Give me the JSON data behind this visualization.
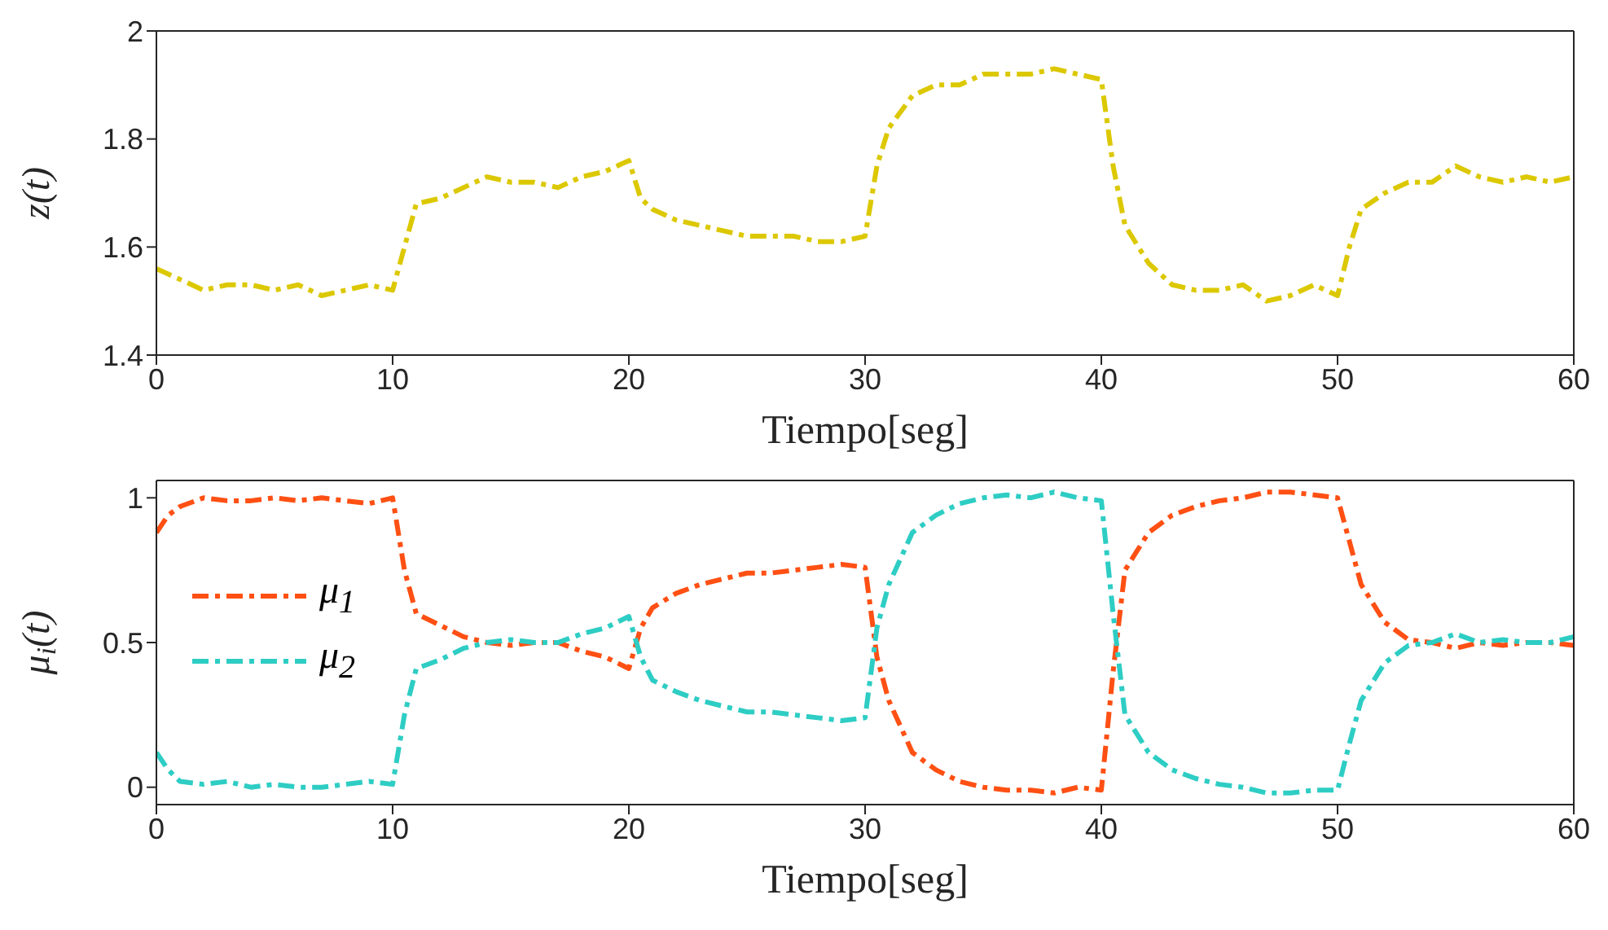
{
  "chart_data": [
    {
      "type": "line",
      "xlabel": "Tiempo[seg]",
      "ylabel": "z(t)",
      "line_style": "dashed",
      "grid": false,
      "legend": false,
      "xlim": [
        0,
        60
      ],
      "xticks": [
        0,
        10,
        20,
        30,
        40,
        50,
        60
      ],
      "ylim": [
        1.4,
        2
      ],
      "yticks": [
        1.4,
        1.6,
        1.8,
        2
      ],
      "x": [
        0,
        0.5,
        1,
        2,
        3,
        4,
        5,
        6,
        7,
        8,
        9,
        10,
        10.5,
        11,
        12,
        13,
        14,
        15,
        16,
        17,
        18,
        19,
        20,
        20.5,
        21,
        22,
        23,
        24,
        25,
        26,
        27,
        28,
        29,
        30,
        30.5,
        31,
        32,
        33,
        34,
        35,
        36,
        37,
        38,
        39,
        40,
        40.5,
        41,
        42,
        43,
        44,
        45,
        46,
        47,
        48,
        49,
        50,
        50.5,
        51,
        52,
        53,
        54,
        55,
        56,
        57,
        58,
        59,
        60
      ],
      "series": [
        {
          "color": "#dcc800",
          "values": [
            1.56,
            1.55,
            1.54,
            1.52,
            1.53,
            1.53,
            1.52,
            1.53,
            1.51,
            1.52,
            1.53,
            1.52,
            1.6,
            1.68,
            1.69,
            1.71,
            1.73,
            1.72,
            1.72,
            1.71,
            1.73,
            1.74,
            1.76,
            1.69,
            1.67,
            1.65,
            1.64,
            1.63,
            1.62,
            1.62,
            1.62,
            1.61,
            1.61,
            1.62,
            1.75,
            1.82,
            1.88,
            1.9,
            1.9,
            1.92,
            1.92,
            1.92,
            1.93,
            1.92,
            1.91,
            1.75,
            1.64,
            1.57,
            1.53,
            1.52,
            1.52,
            1.53,
            1.5,
            1.51,
            1.53,
            1.51,
            1.6,
            1.67,
            1.7,
            1.72,
            1.72,
            1.75,
            1.73,
            1.72,
            1.73,
            1.72,
            1.73
          ]
        }
      ]
    },
    {
      "type": "line",
      "xlabel": "Tiempo[seg]",
      "ylabel": "μ$_{i}$(t)",
      "line_style": "dashed",
      "grid": false,
      "legend": "left",
      "xlim": [
        0,
        60
      ],
      "xticks": [
        0,
        10,
        20,
        30,
        40,
        50,
        60
      ],
      "ylim": [
        -0.06,
        1.06
      ],
      "yticks": [
        0,
        0.5,
        1
      ],
      "x": [
        0,
        0.5,
        1,
        2,
        3,
        4,
        5,
        6,
        7,
        8,
        9,
        10,
        10.5,
        11,
        12,
        13,
        14,
        15,
        16,
        17,
        18,
        19,
        20,
        20.5,
        21,
        22,
        23,
        24,
        25,
        26,
        27,
        28,
        29,
        30,
        30.5,
        31,
        32,
        33,
        34,
        35,
        36,
        37,
        38,
        39,
        40,
        40.5,
        41,
        42,
        43,
        44,
        45,
        46,
        47,
        48,
        49,
        50,
        50.5,
        51,
        52,
        53,
        54,
        55,
        56,
        57,
        58,
        59,
        60
      ],
      "series": [
        {
          "name": "μ$_{1}$",
          "color": "#ff5014",
          "values": [
            0.88,
            0.94,
            0.97,
            1.0,
            0.99,
            0.99,
            1.0,
            0.99,
            1.0,
            0.99,
            0.98,
            1.0,
            0.75,
            0.6,
            0.56,
            0.52,
            0.5,
            0.49,
            0.5,
            0.5,
            0.47,
            0.45,
            0.41,
            0.55,
            0.62,
            0.67,
            0.7,
            0.72,
            0.74,
            0.74,
            0.75,
            0.76,
            0.77,
            0.76,
            0.45,
            0.3,
            0.12,
            0.06,
            0.02,
            0,
            -0.01,
            -0.01,
            -0.02,
            0,
            -0.01,
            0.4,
            0.75,
            0.88,
            0.94,
            0.97,
            0.99,
            1.0,
            1.02,
            1.02,
            1.01,
            1.0,
            0.85,
            0.7,
            0.57,
            0.51,
            0.5,
            0.48,
            0.5,
            0.49,
            0.5,
            0.5,
            0.49
          ]
        },
        {
          "name": "μ$_{2}$",
          "color": "#2ecdc4",
          "values": [
            0.12,
            0.06,
            0.02,
            0.01,
            0.02,
            0,
            0.01,
            0,
            0,
            0.01,
            0.02,
            0.01,
            0.25,
            0.41,
            0.44,
            0.48,
            0.5,
            0.51,
            0.5,
            0.5,
            0.53,
            0.55,
            0.59,
            0.45,
            0.37,
            0.33,
            0.3,
            0.28,
            0.26,
            0.26,
            0.25,
            0.24,
            0.23,
            0.24,
            0.55,
            0.7,
            0.88,
            0.94,
            0.98,
            1.0,
            1.01,
            1.0,
            1.02,
            1.0,
            0.99,
            0.6,
            0.25,
            0.12,
            0.06,
            0.03,
            0.01,
            0,
            -0.02,
            -0.02,
            -0.01,
            -0.01,
            0.15,
            0.3,
            0.43,
            0.49,
            0.5,
            0.53,
            0.5,
            0.51,
            0.5,
            0.5,
            0.52
          ]
        }
      ]
    }
  ]
}
